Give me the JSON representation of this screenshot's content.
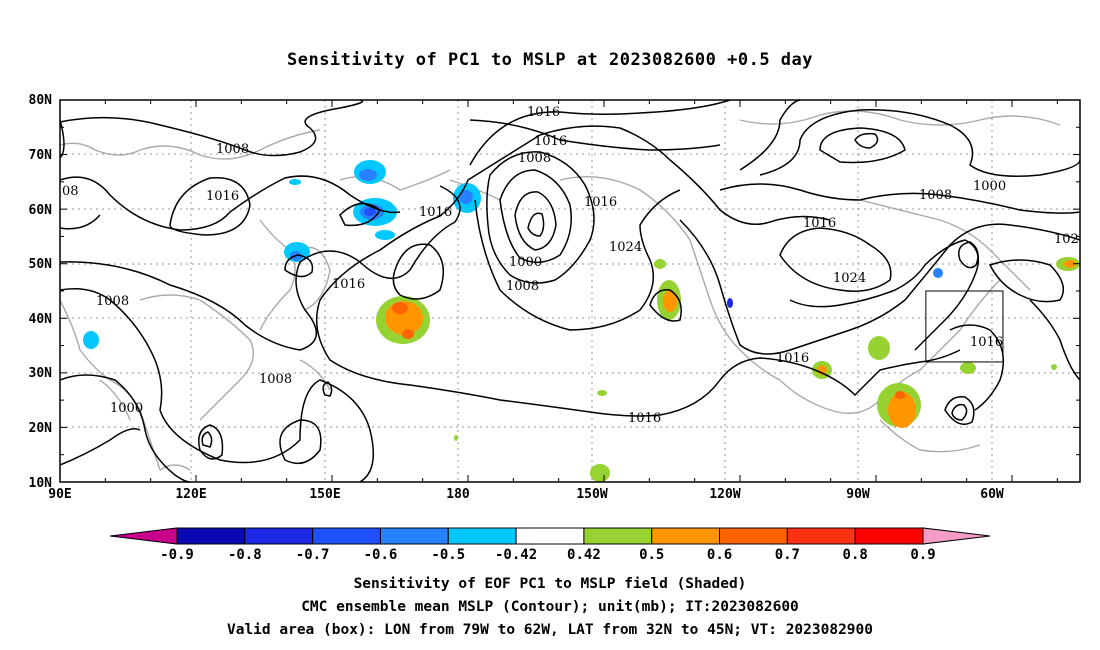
{
  "title": "Sensitivity of PC1 to MSLP at 2023082600 +0.5 day",
  "lat_labels": [
    "80N",
    "70N",
    "60N",
    "50N",
    "40N",
    "30N",
    "20N",
    "10N"
  ],
  "lon_labels": [
    "90E",
    "120E",
    "150E",
    "180",
    "150W",
    "120W",
    "90W",
    "60W"
  ],
  "colorbar": {
    "labels": [
      "-0.9",
      "-0.8",
      "-0.7",
      "-0.6",
      "-0.5",
      "-0.42",
      "0.42",
      "0.5",
      "0.6",
      "0.7",
      "0.8",
      "0.9"
    ],
    "colors": [
      "#c8008c",
      "#0a0ab4",
      "#1e28e6",
      "#1e50ff",
      "#2882ff",
      "#00c8ff",
      "#ffffff",
      "#96d232",
      "#ff9600",
      "#ff6400",
      "#ff3214",
      "#ff0000",
      "#f59bc8"
    ]
  },
  "contour_labels": [
    "1016",
    "1016",
    "1008",
    "1008",
    "1016",
    "1016",
    "1016",
    "1000",
    "1008",
    "1024",
    "1016",
    "1008",
    "1000",
    "08",
    "1016",
    "1008",
    "1000",
    "1008",
    "1016",
    "1016",
    "1024",
    "1016",
    "1016",
    "102"
  ],
  "valid_box": {
    "lon_min": -79,
    "lon_max": -62,
    "lat_min": 32,
    "lat_max": 45
  },
  "captions": [
    "Sensitivity of EOF PC1 to MSLP field (Shaded)",
    "CMC ensemble mean MSLP (Contour); unit(mb); IT:2023082600",
    "Valid area (box): LON from 79W to 62W, LAT from 32N to 45N; VT: 2023082900"
  ]
}
